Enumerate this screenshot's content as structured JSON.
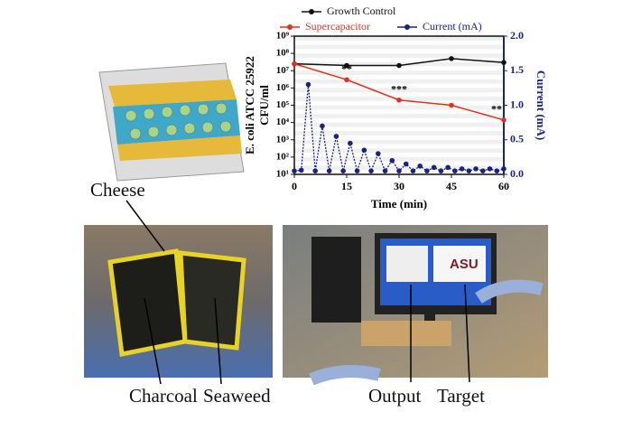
{
  "chart_data": {
    "type": "line",
    "series": [
      {
        "name": "Growth Control",
        "color": "#111111",
        "axis": "y",
        "x": [
          0,
          15,
          30,
          45,
          60
        ],
        "values": [
          25000000,
          20000000,
          20000000,
          50000000,
          30000000
        ]
      },
      {
        "name": "Supercapacitor",
        "color": "#e0301e",
        "axis": "y",
        "x": [
          0,
          15,
          30,
          45,
          60
        ],
        "values": [
          25000000,
          3000000,
          200000,
          100000,
          14000
        ]
      },
      {
        "name": "Current (mA)",
        "color": "#1a237e",
        "axis": "y2",
        "x": [
          0,
          2,
          4,
          6,
          8,
          10,
          12,
          14,
          16,
          18,
          20,
          22,
          24,
          26,
          28,
          30,
          32,
          34,
          36,
          38,
          40,
          42,
          44,
          46,
          48,
          50,
          52,
          54,
          56,
          58,
          60
        ],
        "values": [
          0.05,
          0.06,
          1.3,
          0.05,
          0.7,
          0.05,
          0.55,
          0.05,
          0.45,
          0.05,
          0.35,
          0.05,
          0.3,
          0.05,
          0.2,
          0.05,
          0.15,
          0.05,
          0.12,
          0.05,
          0.1,
          0.05,
          0.1,
          0.05,
          0.08,
          0.05,
          0.08,
          0.05,
          0.08,
          0.05,
          0.08
        ]
      }
    ],
    "log_y": true,
    "xlim": [
      0,
      60
    ],
    "xticks": [
      0,
      15,
      30,
      45,
      60
    ],
    "ylim": [
      10,
      1000000000
    ],
    "yticks": [
      {
        "value": 10,
        "label": "10¹"
      },
      {
        "value": 100,
        "label": "10²"
      },
      {
        "value": 1000,
        "label": "10³"
      },
      {
        "value": 10000,
        "label": "10⁴"
      },
      {
        "value": 100000,
        "label": "10⁵"
      },
      {
        "value": 1000000,
        "label": "10⁶"
      },
      {
        "value": 10000000,
        "label": "10⁷"
      },
      {
        "value": 100000000,
        "label": "10⁸"
      },
      {
        "value": 1000000000,
        "label": "10⁹"
      }
    ],
    "y2lim": [
      0,
      2
    ],
    "y2ticks": [
      {
        "value": 0,
        "label": "0.0"
      },
      0.5,
      {
        "value": 1,
        "label": "1.0"
      },
      1.5,
      {
        "value": 2,
        "label": "2.0"
      }
    ],
    "x_label": "Time (min)",
    "y_label": [
      "E. coli ATCC 25922",
      "CFU/ml"
    ],
    "y2_label": "Current (mA)",
    "grid": false,
    "annotations": [
      {
        "text": "**",
        "x": 15
      },
      {
        "text": "***",
        "x": 30
      },
      {
        "text": "**",
        "x": 60
      }
    ]
  },
  "labels": {
    "cheese": "Cheese",
    "charcoal": "Charcoal",
    "seaweed": "Seaweed",
    "output": "Output",
    "target": "Target",
    "screen": "ASU"
  }
}
